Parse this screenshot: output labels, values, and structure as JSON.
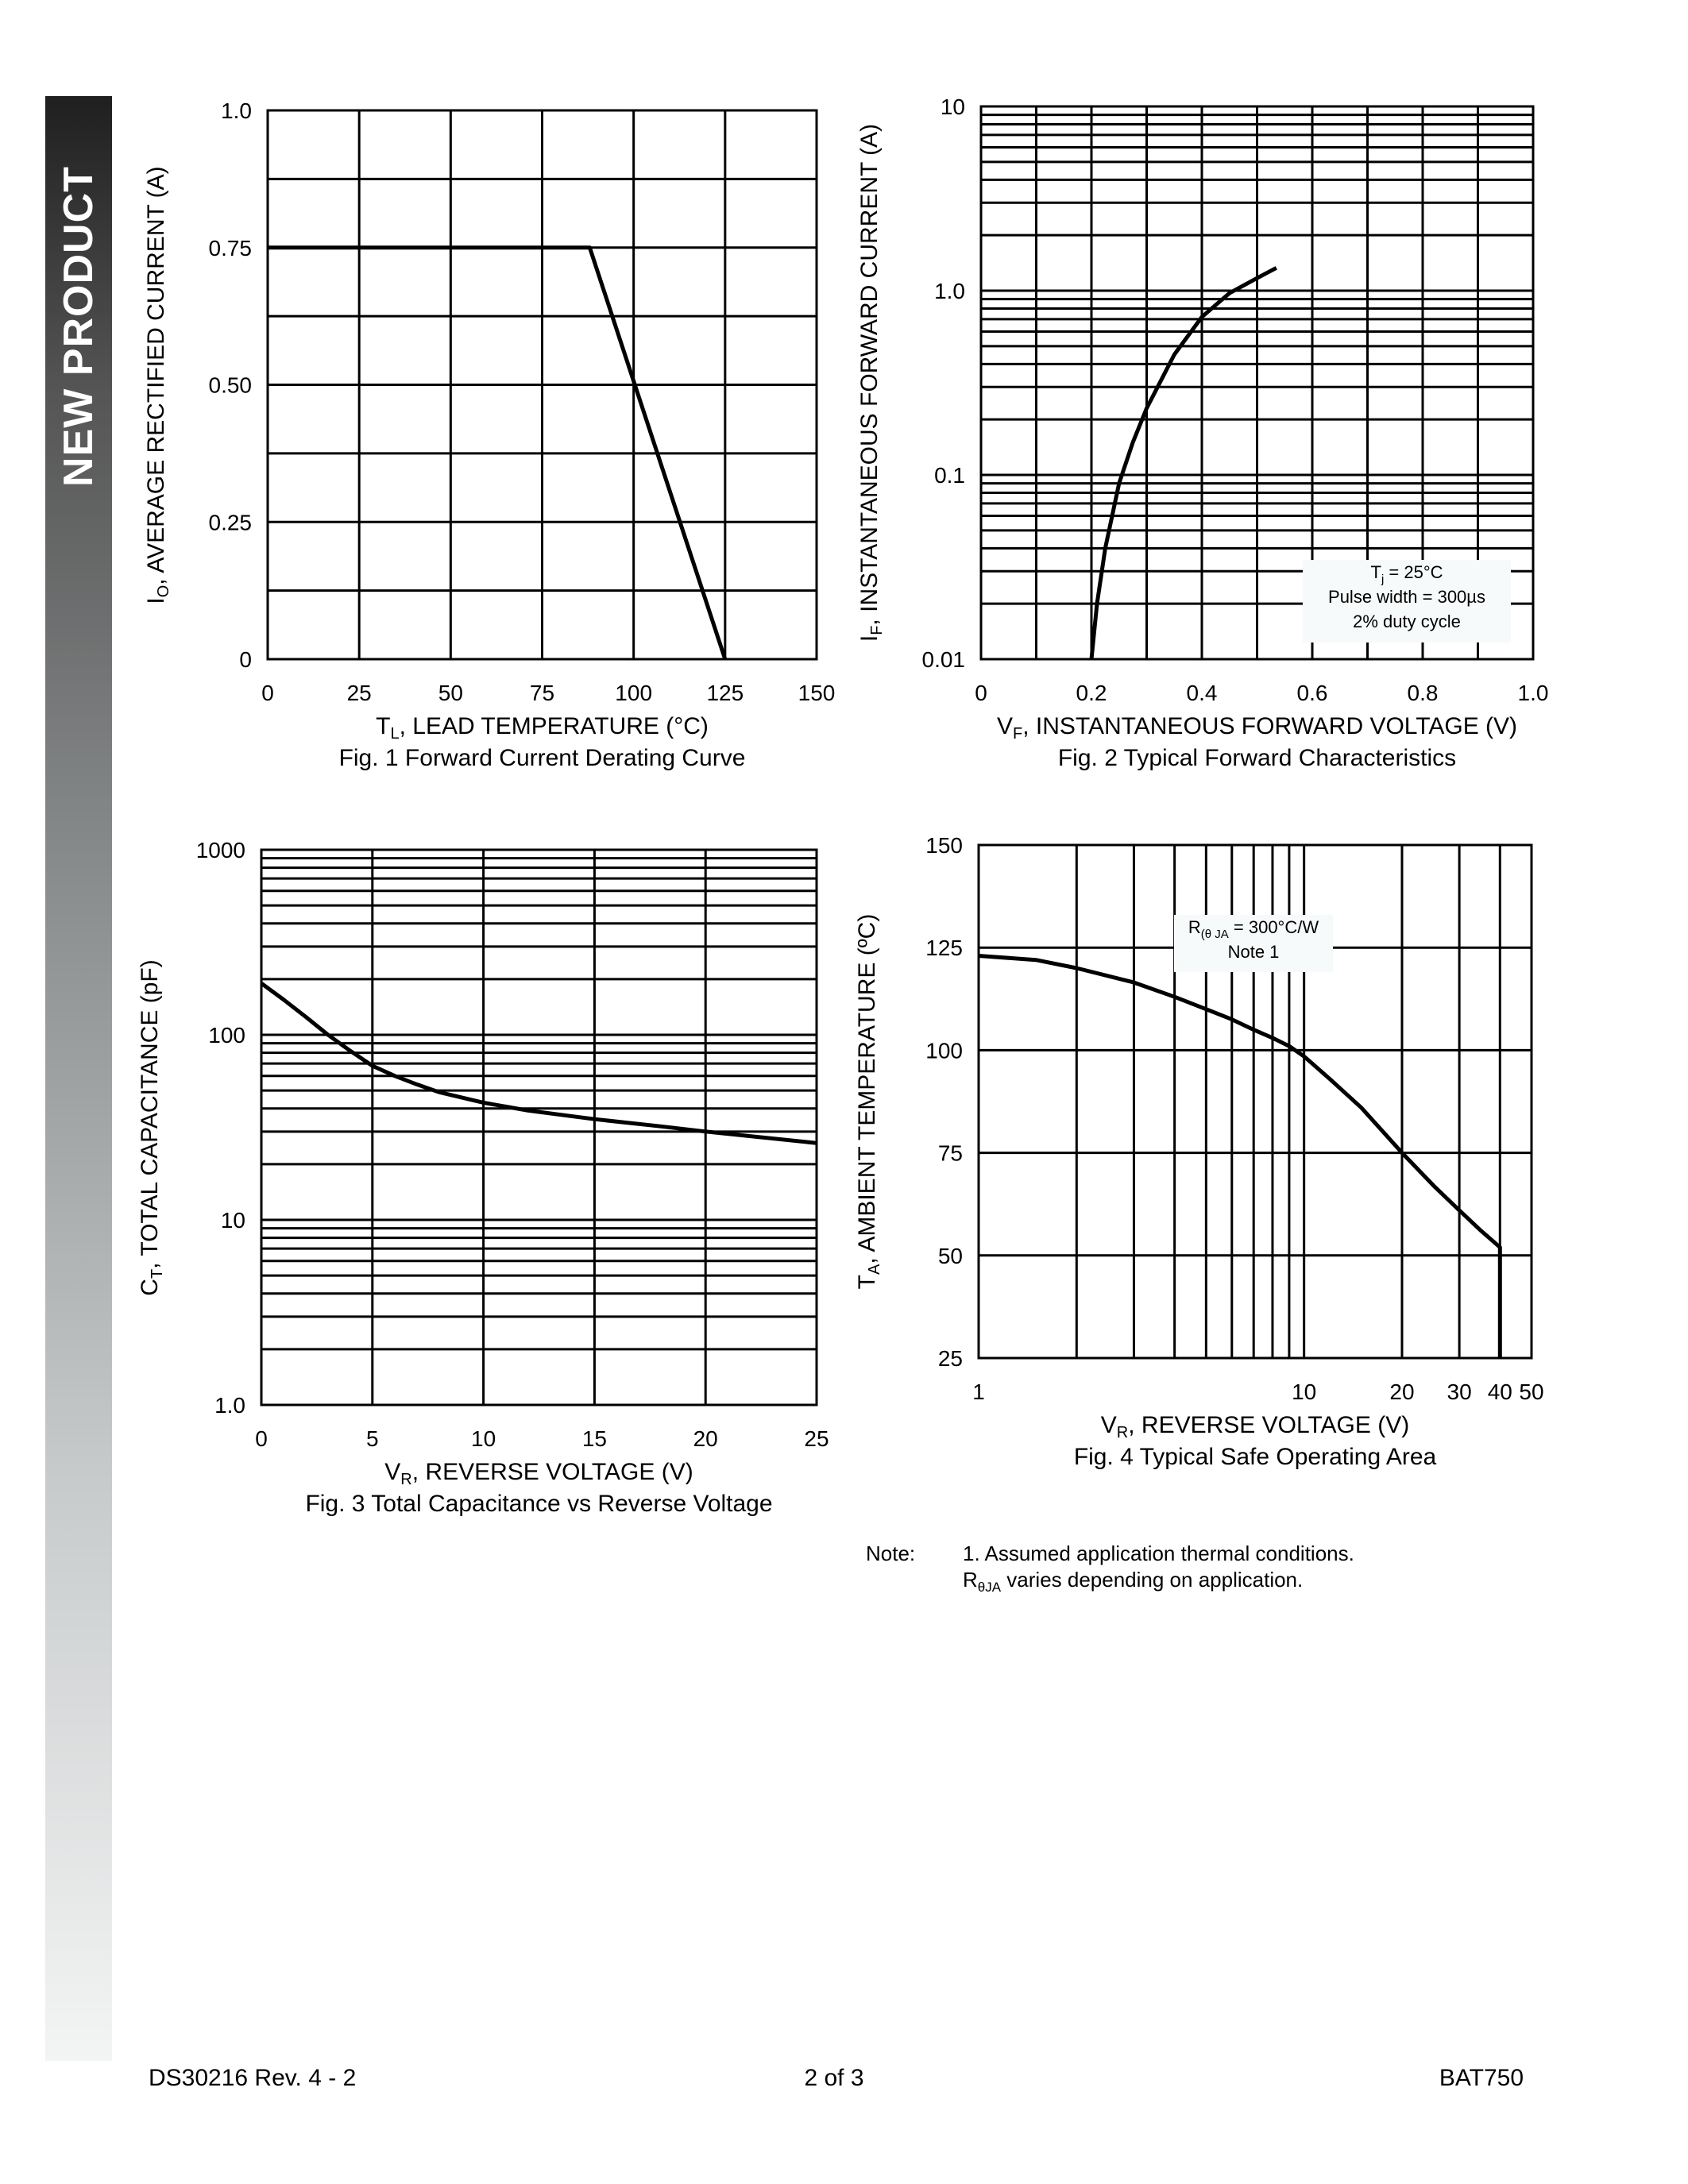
{
  "sidebar": {
    "label": "NEW PRODUCT"
  },
  "footer": {
    "doc_id": "DS30216 Rev. 4 - 2",
    "page": "2 of 3",
    "part": "BAT750"
  },
  "note": {
    "prefix": "Note:",
    "line1": "1.  Assumed application thermal conditions.",
    "line2_symbol": "R",
    "line2_sub": "θJA",
    "line2_rest": " varies depending on application."
  },
  "chart_data": [
    {
      "type": "line",
      "caption": "Fig. 1  Forward Current Derating Curve",
      "xlabel": {
        "main": "T",
        "sub": "L",
        "rest": ", LEAD TEMPERATURE (°C)"
      },
      "ylabel": {
        "main": "I",
        "sub": "O",
        "rest": ", AVERAGE RECTIFIED CURRENT (A)"
      },
      "xscale": "linear",
      "yscale": "linear",
      "xlim": [
        0,
        150
      ],
      "ylim": [
        0,
        1.0
      ],
      "xticks": [
        0,
        25,
        50,
        75,
        100,
        125,
        150
      ],
      "xtick_labels": [
        "0",
        "25",
        "50",
        "75",
        "100",
        "125",
        "150"
      ],
      "yticks": [
        0,
        0.25,
        0.5,
        0.75,
        1.0
      ],
      "ytick_labels": [
        "0",
        "0.25",
        "0.50",
        "0.75",
        "1.0"
      ],
      "grid": true,
      "series": [
        {
          "x": [
            0,
            88,
            125
          ],
          "y": [
            0.75,
            0.75,
            0
          ]
        }
      ]
    },
    {
      "type": "line",
      "caption": "Fig. 2  Typical Forward Characteristics",
      "xlabel": {
        "main": "V",
        "sub": "F",
        "rest": ", INSTANTANEOUS FORWARD VOLTAGE (V)"
      },
      "ylabel": {
        "main": "I",
        "sub": "F",
        "rest": ", INSTANTANEOUS FORWARD CURRENT (A)"
      },
      "xscale": "linear",
      "yscale": "log",
      "xlim": [
        0,
        1.0
      ],
      "ylim": [
        0.01,
        10
      ],
      "xticks": [
        0,
        0.2,
        0.4,
        0.6,
        0.8,
        1.0
      ],
      "xtick_labels": [
        "0",
        "0.2",
        "0.4",
        "0.6",
        "0.8",
        "1.0"
      ],
      "yticks": [
        0.01,
        0.1,
        1,
        10
      ],
      "ytick_labels": [
        "0.01",
        "0.1",
        "1.0",
        "10"
      ],
      "grid": true,
      "annotation": {
        "line1_main": "T",
        "line1_sub": "j",
        "line1_rest": " = 25°C",
        "line2": "Pulse width = 300µs",
        "line3": "2% duty cycle"
      },
      "series": [
        {
          "x": [
            0.2,
            0.21,
            0.225,
            0.25,
            0.275,
            0.3,
            0.35,
            0.4,
            0.45,
            0.5,
            0.535
          ],
          "y": [
            0.01,
            0.02,
            0.04,
            0.09,
            0.15,
            0.23,
            0.45,
            0.72,
            0.97,
            1.17,
            1.33
          ]
        }
      ]
    },
    {
      "type": "line",
      "caption": "Fig. 3  Total Capacitance vs Reverse Voltage",
      "xlabel": {
        "main": "V",
        "sub": "R",
        "rest": ", REVERSE VOLTAGE (V)"
      },
      "ylabel": {
        "main": "C",
        "sub": "T",
        "rest": ", TOTAL CAPACITANCE (pF)"
      },
      "xscale": "linear",
      "yscale": "log",
      "xlim": [
        0,
        25
      ],
      "ylim": [
        1,
        1000
      ],
      "xticks": [
        0,
        5,
        10,
        15,
        20,
        25
      ],
      "xtick_labels": [
        "0",
        "5",
        "10",
        "15",
        "20",
        "25"
      ],
      "yticks": [
        1,
        10,
        100,
        1000
      ],
      "ytick_labels": [
        "1.0",
        "10",
        "100",
        "1000"
      ],
      "grid": true,
      "series": [
        {
          "x": [
            0,
            1,
            2,
            3,
            4,
            5,
            6,
            7,
            8,
            10,
            12,
            15,
            18,
            20,
            25
          ],
          "y": [
            190,
            155,
            125,
            100,
            82,
            68,
            60,
            54,
            49,
            43,
            39,
            35,
            32,
            30,
            26
          ]
        }
      ]
    },
    {
      "type": "line",
      "caption": "Fig. 4  Typical Safe Operating Area",
      "xlabel": {
        "main": "V",
        "sub": "R",
        "rest": ", REVERSE VOLTAGE (V)"
      },
      "ylabel": {
        "main": "T",
        "sub": "A",
        "rest": ", AMBIENT TEMPERATURE (ºC)"
      },
      "xscale": "log",
      "yscale": "linear",
      "xlim": [
        1,
        50
      ],
      "ylim": [
        25,
        150
      ],
      "xticks": [
        1,
        10,
        20,
        30,
        40,
        50
      ],
      "xtick_labels": [
        "1",
        "10",
        "20",
        "30",
        "40",
        "50"
      ],
      "yticks": [
        25,
        50,
        75,
        100,
        125,
        150
      ],
      "ytick_labels": [
        "25",
        "50",
        "75",
        "100",
        "125",
        "150"
      ],
      "grid": true,
      "annotation": {
        "line1_main": "R",
        "line1_sub": "(θ JA",
        "line1_rest": " = 300°C/W",
        "line2": "Note 1"
      },
      "series": [
        {
          "x": [
            1,
            1.5,
            2,
            3,
            4,
            5,
            6,
            7,
            8,
            9,
            10,
            12,
            15,
            20,
            25,
            30,
            35,
            40,
            40
          ],
          "y": [
            123,
            122,
            120,
            116.5,
            113,
            110,
            107.5,
            105,
            103,
            101,
            98.5,
            93,
            86,
            75,
            67,
            61,
            56,
            52,
            25
          ]
        }
      ]
    }
  ]
}
